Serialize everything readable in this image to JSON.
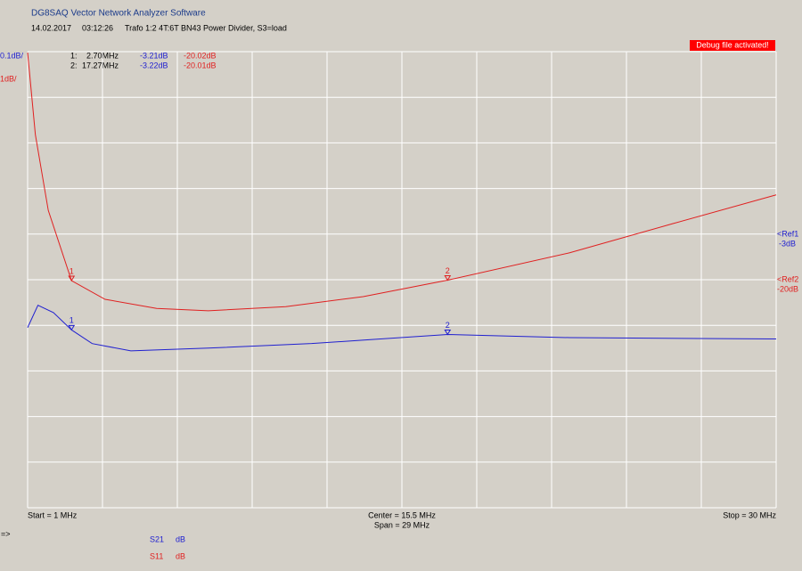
{
  "header": {
    "title": "DG8SAQ Vector Network Analyzer Software",
    "date": "14.02.2017",
    "time": "03:12:26",
    "description": "Trafo 1:2 4T:6T BN43 Power Divider, S3=load"
  },
  "debug_notice": "Debug file activated!",
  "scales": [
    "0.1dB/",
    "1dB/"
  ],
  "marker_table": [
    {
      "index": "1:",
      "freq": "2.70MHz",
      "s21": "-3.21dB",
      "s11": "-20.02dB"
    },
    {
      "index": "2:",
      "freq": "17.27MHz",
      "s21": "-3.22dB",
      "s11": "-20.01dB"
    }
  ],
  "refs": [
    {
      "name": "<Ref1",
      "level": "-3dB"
    },
    {
      "name": "<Ref2",
      "level": "-20dB"
    }
  ],
  "axis": {
    "start": "Start = 1 MHz",
    "center": "Center = 15.5 MHz",
    "span": "Span = 29 MHz",
    "stop": "Stop = 30 MHz"
  },
  "prompt": "=>",
  "legend": [
    {
      "name": "S21",
      "unit": "dB"
    },
    {
      "name": "S11",
      "unit": "dB"
    }
  ],
  "chart_data": {
    "type": "line",
    "xlim": [
      1,
      30
    ],
    "series": [
      {
        "name": "S21",
        "color": "#2020d0",
        "ref": -3,
        "per_div": 0.1,
        "x": [
          1,
          1.4,
          2,
          2.7,
          3.5,
          5,
          8,
          12,
          17.27,
          22,
          30
        ],
        "values": [
          -3.205,
          -3.156,
          -3.172,
          -3.21,
          -3.24,
          -3.256,
          -3.25,
          -3.24,
          -3.22,
          -3.227,
          -3.23
        ],
        "markers": [
          {
            "label": "1",
            "x": 2.7,
            "value": -3.21
          },
          {
            "label": "2",
            "x": 17.27,
            "value": -3.22
          }
        ]
      },
      {
        "name": "S11",
        "color": "#e02020",
        "ref": -20,
        "per_div": 1,
        "x": [
          1,
          1.3,
          1.8,
          2.7,
          4,
          6,
          8,
          11,
          14,
          17.27,
          22,
          26,
          30
        ],
        "values": [
          -15.02,
          -16.82,
          -18.48,
          -20.02,
          -20.43,
          -20.63,
          -20.68,
          -20.59,
          -20.37,
          -20.01,
          -19.41,
          -18.77,
          -18.14
        ],
        "markers": [
          {
            "label": "1",
            "x": 2.7,
            "value": -20.02
          },
          {
            "label": "2",
            "x": 17.27,
            "value": -20.01
          }
        ]
      }
    ]
  }
}
